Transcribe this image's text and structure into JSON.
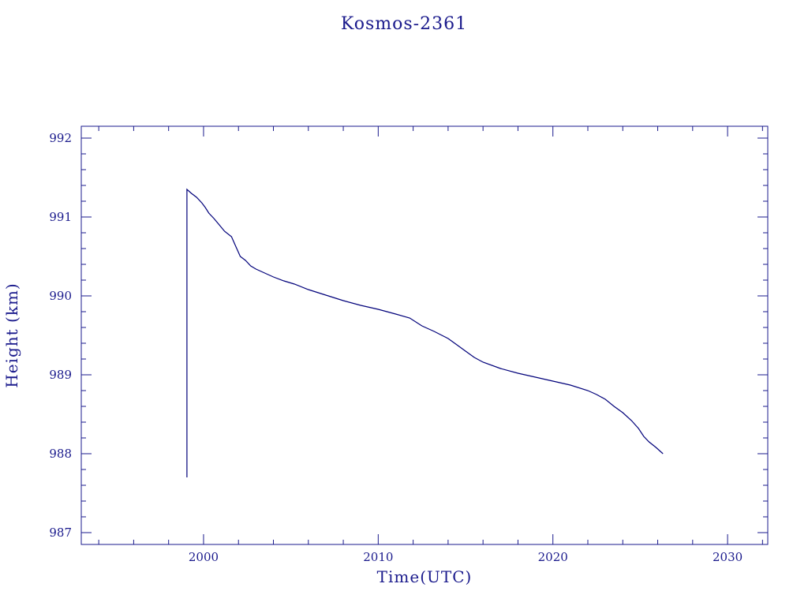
{
  "chart_data": {
    "type": "line",
    "title": "Kosmos-2361",
    "xlabel": "Time(UTC)",
    "ylabel": "Height (km)",
    "xlim": [
      1993.0,
      2032.3
    ],
    "ylim": [
      986.85,
      992.15
    ],
    "xticks": [
      "2000",
      "2010",
      "2020",
      "2030"
    ],
    "yticks": [
      "987",
      "988",
      "989",
      "990",
      "991",
      "992"
    ],
    "grid": false,
    "color": "#00007a",
    "series": [
      {
        "x": [
          1999.05,
          1999.05,
          1999.3,
          1999.6,
          1999.9,
          2000.1,
          2000.3,
          2000.6,
          2000.9,
          2001.2,
          2001.6,
          2001.8,
          2002.1,
          2002.4,
          2002.7,
          2003.0,
          2003.5,
          2004.0,
          2004.6,
          2005.2,
          2006.0,
          2007.0,
          2008.0,
          2009.0,
          2010.0,
          2011.0,
          2011.8,
          2012.5,
          2013.2,
          2014.0,
          2014.5,
          2015.0,
          2015.5,
          2016.0,
          2017.0,
          2018.0,
          2019.0,
          2020.0,
          2021.0,
          2022.0,
          2022.5,
          2023.0,
          2023.5,
          2024.0,
          2024.5,
          2024.9,
          2025.2,
          2025.5,
          2025.9,
          2026.3
        ],
        "y": [
          987.7,
          991.35,
          991.3,
          991.25,
          991.18,
          991.12,
          991.05,
          990.98,
          990.9,
          990.82,
          990.75,
          990.65,
          990.5,
          990.45,
          990.38,
          990.34,
          990.29,
          990.24,
          990.19,
          990.15,
          990.08,
          990.01,
          989.94,
          989.88,
          989.83,
          989.77,
          989.72,
          989.62,
          989.55,
          989.46,
          989.38,
          989.3,
          989.22,
          989.16,
          989.08,
          989.02,
          988.97,
          988.92,
          988.87,
          988.8,
          988.75,
          988.69,
          988.6,
          988.52,
          988.42,
          988.32,
          988.22,
          988.15,
          988.08,
          988.0
        ]
      }
    ]
  }
}
